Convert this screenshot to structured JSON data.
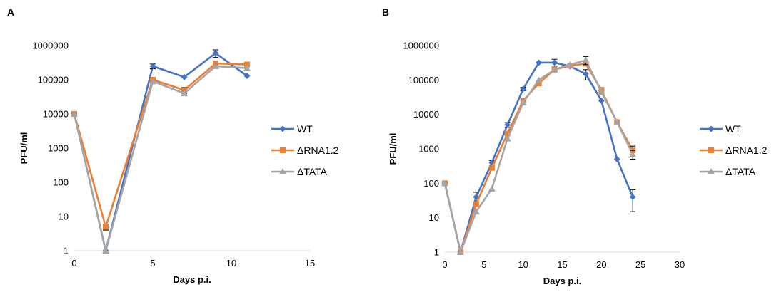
{
  "figure": {
    "panels": [
      "A",
      "B"
    ]
  },
  "chart_data": [
    {
      "panel": "A",
      "type": "line",
      "xlabel": "Days p.i.",
      "ylabel": "PFU/ml",
      "yscale": "log",
      "xlim": [
        0,
        15
      ],
      "ylim": [
        1,
        1000000
      ],
      "xticks": [
        "0",
        "5",
        "10",
        "15"
      ],
      "yticks": [
        "1",
        "10",
        "100",
        "1000",
        "10000",
        "100000",
        "1000000"
      ],
      "legend_position": "right",
      "series": [
        {
          "name": "WT",
          "color": "#4472C4",
          "marker": "diamond",
          "x": [
            0,
            2,
            5,
            7,
            9,
            11
          ],
          "y": [
            10000,
            1,
            250000,
            120000,
            600000,
            130000
          ],
          "err": [
            0,
            0,
            40000,
            0,
            150000,
            0
          ]
        },
        {
          "name": "ΔRNA1.2",
          "color": "#ED7D31",
          "marker": "square",
          "x": [
            0,
            2,
            5,
            7,
            9,
            11
          ],
          "y": [
            10000,
            5,
            100000,
            50000,
            300000,
            280000
          ],
          "err": [
            0,
            1,
            0,
            10000,
            0,
            0
          ]
        },
        {
          "name": "ΔTATA",
          "color": "#A5A5A5",
          "marker": "triangle",
          "x": [
            0,
            2,
            5,
            7,
            9,
            11
          ],
          "y": [
            10000,
            1,
            90000,
            40000,
            250000,
            220000
          ],
          "err": [
            0,
            0,
            0,
            0,
            0,
            0
          ]
        }
      ]
    },
    {
      "panel": "B",
      "type": "line",
      "xlabel": "Days p.i.",
      "ylabel": "PFU/ml",
      "yscale": "log",
      "xlim": [
        0,
        30
      ],
      "ylim": [
        1,
        1000000
      ],
      "xticks": [
        "0",
        "5",
        "10",
        "15",
        "20",
        "25",
        "30"
      ],
      "yticks": [
        "1",
        "10",
        "100",
        "1000",
        "10000",
        "100000",
        "1000000"
      ],
      "legend_position": "right",
      "series": [
        {
          "name": "WT",
          "color": "#4472C4",
          "marker": "diamond",
          "x": [
            0,
            2,
            4,
            6,
            8,
            10,
            12,
            14,
            16,
            18,
            20,
            22,
            24
          ],
          "y": [
            100,
            1,
            40,
            400,
            5000,
            55000,
            320000,
            320000,
            250000,
            150000,
            25000,
            500,
            40
          ],
          "err": [
            0,
            0,
            15,
            60,
            800,
            6000,
            0,
            80000,
            0,
            50000,
            0,
            0,
            25
          ]
        },
        {
          "name": "ΔRNA1.2",
          "color": "#ED7D31",
          "marker": "square",
          "x": [
            0,
            2,
            4,
            6,
            8,
            10,
            12,
            14,
            16,
            18,
            20,
            22,
            24
          ],
          "y": [
            100,
            1,
            25,
            280,
            2800,
            25000,
            80000,
            200000,
            260000,
            300000,
            50000,
            6000,
            900
          ],
          "err": [
            0,
            0,
            0,
            0,
            300,
            0,
            10000,
            0,
            0,
            0,
            10000,
            0,
            300
          ]
        },
        {
          "name": "ΔTATA",
          "color": "#A5A5A5",
          "marker": "triangle",
          "x": [
            0,
            2,
            4,
            6,
            8,
            10,
            12,
            14,
            16,
            18,
            20,
            22,
            24
          ],
          "y": [
            100,
            1,
            15,
            70,
            2000,
            22000,
            100000,
            200000,
            280000,
            380000,
            45000,
            6000,
            700
          ],
          "err": [
            0,
            0,
            0,
            0,
            0,
            0,
            0,
            0,
            0,
            100000,
            0,
            0,
            200
          ]
        }
      ]
    }
  ]
}
